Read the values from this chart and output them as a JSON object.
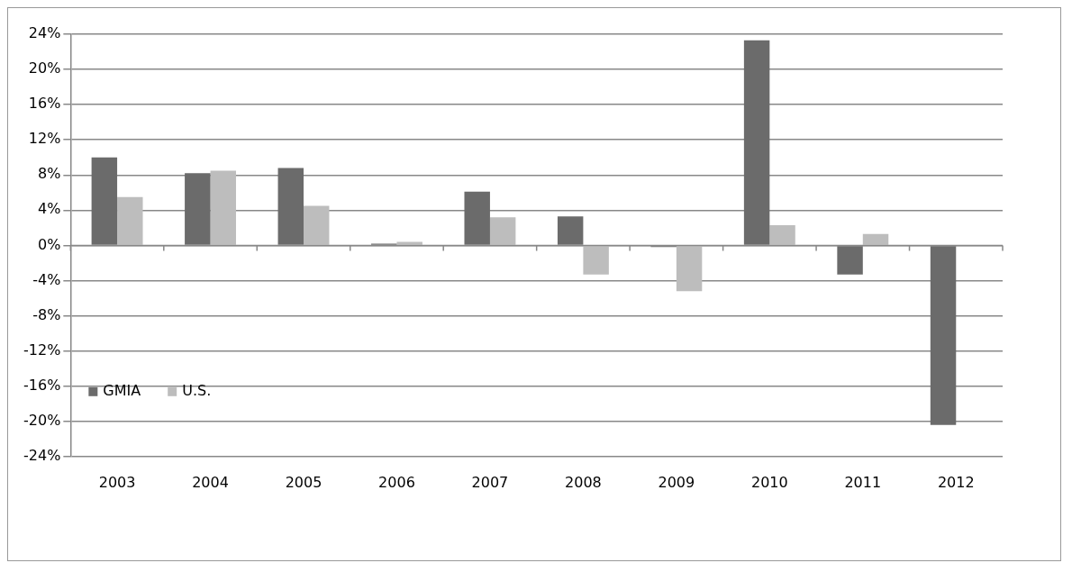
{
  "chart_data": {
    "type": "bar",
    "categories": [
      "2003",
      "2004",
      "2005",
      "2006",
      "2007",
      "2008",
      "2009",
      "2010",
      "2011",
      "2012"
    ],
    "series": [
      {
        "name": "GMIA",
        "color": "#6b6b6b",
        "values": [
          10.0,
          8.2,
          8.8,
          0.2,
          6.1,
          3.3,
          -0.2,
          23.3,
          -3.3,
          -20.4
        ]
      },
      {
        "name": "U.S.",
        "color": "#bdbdbd",
        "values": [
          5.5,
          8.5,
          4.5,
          0.4,
          3.2,
          -3.3,
          -5.2,
          2.3,
          1.3,
          null
        ]
      }
    ],
    "ylim": [
      -24,
      24
    ],
    "yticks": [
      {
        "value": -24,
        "label": "-24%"
      },
      {
        "value": -20,
        "label": "-20%"
      },
      {
        "value": -16,
        "label": "-16%"
      },
      {
        "value": -12,
        "label": "-12%"
      },
      {
        "value": -8,
        "label": "-8%"
      },
      {
        "value": -4,
        "label": "-4%"
      },
      {
        "value": 0,
        "label": "0%"
      },
      {
        "value": 4,
        "label": "4%"
      },
      {
        "value": 8,
        "label": "8%"
      },
      {
        "value": 12,
        "label": "12%"
      },
      {
        "value": 16,
        "label": "16%"
      },
      {
        "value": 20,
        "label": "20%"
      },
      {
        "value": 24,
        "label": "24%"
      }
    ],
    "grid": "y",
    "legend": "bottom left"
  }
}
